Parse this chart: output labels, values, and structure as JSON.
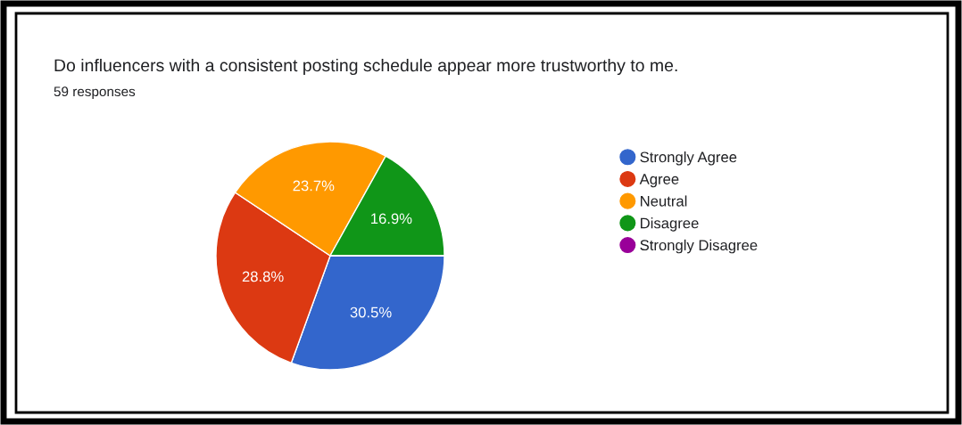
{
  "chart_data": {
    "type": "pie",
    "title": "Do influencers with a consistent posting schedule appear more trustworthy to me.",
    "subtitle": "59 responses",
    "categories": [
      "Strongly Agree",
      "Agree",
      "Neutral",
      "Disagree",
      "Strongly Disagree"
    ],
    "values": [
      30.5,
      28.8,
      23.7,
      16.9,
      0
    ],
    "colors": [
      "#3366cc",
      "#dc3912",
      "#ff9900",
      "#109618",
      "#990099"
    ],
    "value_labels": [
      "30.5%",
      "28.8%",
      "23.7%",
      "16.9%",
      null
    ],
    "legend": "right"
  }
}
